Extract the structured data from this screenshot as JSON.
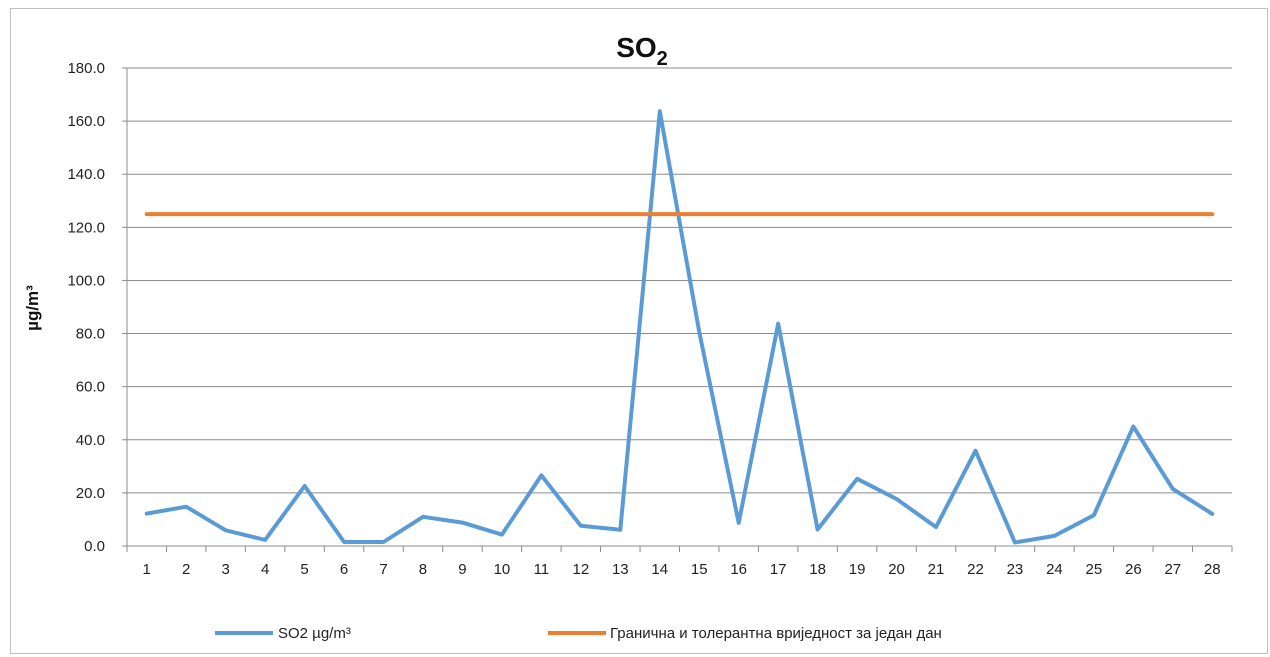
{
  "chart_data": {
    "type": "line",
    "title": "SO",
    "title_subscript": "2",
    "xlabel": "",
    "ylabel": "µg/m³",
    "categories": [
      "1",
      "2",
      "3",
      "4",
      "5",
      "6",
      "7",
      "8",
      "9",
      "10",
      "11",
      "12",
      "13",
      "14",
      "15",
      "16",
      "17",
      "18",
      "19",
      "20",
      "21",
      "22",
      "23",
      "24",
      "25",
      "26",
      "27",
      "28"
    ],
    "ylim": [
      0,
      180
    ],
    "yticks": [
      "0.0",
      "20.0",
      "40.0",
      "60.0",
      "80.0",
      "100.0",
      "120.0",
      "140.0",
      "160.0",
      "180.0"
    ],
    "grid": true,
    "legend_position": "bottom",
    "series": [
      {
        "name": "SO2 µg/m³",
        "color": "#5b9bd5",
        "values": [
          12.2,
          14.8,
          5.9,
          2.3,
          22.6,
          1.5,
          1.5,
          11.0,
          8.8,
          4.3,
          26.6,
          7.6,
          6.1,
          163.7,
          80.7,
          8.7,
          83.7,
          6.2,
          25.3,
          17.7,
          7.1,
          35.9,
          1.3,
          3.8,
          11.6,
          45.0,
          21.5,
          12.1
        ]
      },
      {
        "name": "Гранична и толерантна вриједност за један дан",
        "color": "#ed7d31",
        "values": [
          125,
          125,
          125,
          125,
          125,
          125,
          125,
          125,
          125,
          125,
          125,
          125,
          125,
          125,
          125,
          125,
          125,
          125,
          125,
          125,
          125,
          125,
          125,
          125,
          125,
          125,
          125,
          125
        ]
      }
    ]
  }
}
